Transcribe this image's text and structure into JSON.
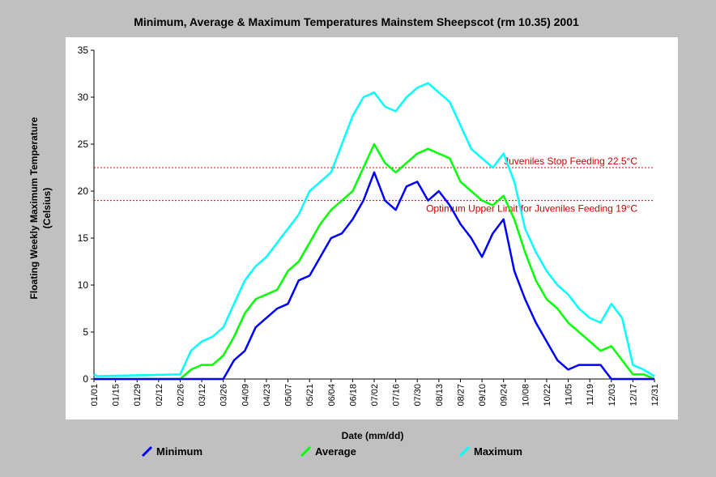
{
  "chart_data": {
    "type": "line",
    "title": "Minimum, Average & Maximum Temperatures Mainstem Sheepscot (rm 10.35) 2001",
    "xlabel": "Date (mm/dd)",
    "ylabel_line1": "Floating Weekly Maximum Temperature",
    "ylabel_line2": "(Celsius)",
    "ylim": [
      0,
      35
    ],
    "xlim": [
      "2001-01-01",
      "2001-12-31"
    ],
    "yticks": [
      0,
      5,
      10,
      15,
      20,
      25,
      30,
      35
    ],
    "xtick_labels": [
      "01/01",
      "01/15",
      "01/29",
      "02/12",
      "02/26",
      "03/12",
      "03/26",
      "04/09",
      "04/23",
      "05/07",
      "05/21",
      "06/04",
      "06/18",
      "07/02",
      "07/16",
      "07/30",
      "08/13",
      "08/27",
      "09/10",
      "09/24",
      "10/08",
      "10/22",
      "11/05",
      "11/19",
      "12/03",
      "12/17",
      "12/31"
    ],
    "grid": false,
    "legend_position": "bottom",
    "reference_lines": [
      {
        "label": "Juveniles Stop Feeding 22.5°C",
        "y": 22.5,
        "color": "#cc0000"
      },
      {
        "label": "Optimum Upper Limit for Juveniles Feeding 19°C",
        "y": 19,
        "color": "#cc0000"
      }
    ],
    "series": [
      {
        "name": "Maximum",
        "color": "#00ffff",
        "x": [
          "2001-01-01",
          "2001-01-03",
          "2001-02-26",
          "2001-03-05",
          "2001-03-12",
          "2001-03-19",
          "2001-03-26",
          "2001-04-02",
          "2001-04-09",
          "2001-04-16",
          "2001-04-23",
          "2001-04-30",
          "2001-05-07",
          "2001-05-14",
          "2001-05-21",
          "2001-05-28",
          "2001-06-04",
          "2001-06-11",
          "2001-06-18",
          "2001-06-25",
          "2001-07-02",
          "2001-07-09",
          "2001-07-16",
          "2001-07-23",
          "2001-07-30",
          "2001-08-06",
          "2001-08-13",
          "2001-08-20",
          "2001-08-27",
          "2001-09-03",
          "2001-09-10",
          "2001-09-17",
          "2001-09-24",
          "2001-10-01",
          "2001-10-08",
          "2001-10-15",
          "2001-10-22",
          "2001-10-29",
          "2001-11-05",
          "2001-11-12",
          "2001-11-19",
          "2001-11-26",
          "2001-12-03",
          "2001-12-10",
          "2001-12-17",
          "2001-12-24",
          "2001-12-31"
        ],
        "values": [
          0.5,
          0.3,
          0.5,
          3.0,
          4.0,
          4.5,
          5.5,
          8.0,
          10.5,
          12.0,
          13.0,
          14.5,
          16.0,
          17.5,
          20.0,
          21.0,
          22.0,
          25.0,
          28.0,
          30.0,
          30.5,
          29.0,
          28.5,
          30.0,
          31.0,
          31.5,
          30.5,
          29.5,
          27.0,
          24.5,
          23.5,
          22.5,
          24.0,
          21.0,
          16.0,
          13.5,
          11.5,
          10.0,
          9.0,
          7.5,
          6.5,
          6.0,
          8.0,
          6.5,
          1.5,
          1.0,
          0.3
        ]
      },
      {
        "name": "Average",
        "color": "#00ff00",
        "x": [
          "2001-01-01",
          "2001-02-26",
          "2001-03-05",
          "2001-03-12",
          "2001-03-19",
          "2001-03-26",
          "2001-04-02",
          "2001-04-09",
          "2001-04-16",
          "2001-04-23",
          "2001-04-30",
          "2001-05-07",
          "2001-05-14",
          "2001-05-21",
          "2001-05-28",
          "2001-06-04",
          "2001-06-11",
          "2001-06-18",
          "2001-06-25",
          "2001-07-02",
          "2001-07-09",
          "2001-07-16",
          "2001-07-23",
          "2001-07-30",
          "2001-08-06",
          "2001-08-13",
          "2001-08-20",
          "2001-08-27",
          "2001-09-03",
          "2001-09-10",
          "2001-09-17",
          "2001-09-24",
          "2001-10-01",
          "2001-10-08",
          "2001-10-15",
          "2001-10-22",
          "2001-10-29",
          "2001-11-05",
          "2001-11-12",
          "2001-11-19",
          "2001-11-26",
          "2001-12-03",
          "2001-12-10",
          "2001-12-17",
          "2001-12-24",
          "2001-12-31"
        ],
        "values": [
          0.0,
          0.0,
          1.0,
          1.5,
          1.5,
          2.5,
          4.5,
          7.0,
          8.5,
          9.0,
          9.5,
          11.5,
          12.5,
          14.5,
          16.5,
          18.0,
          19.0,
          20.0,
          22.5,
          25.0,
          23.0,
          22.0,
          23.0,
          24.0,
          24.5,
          24.0,
          23.5,
          21.0,
          20.0,
          19.0,
          18.5,
          19.5,
          17.0,
          13.5,
          10.5,
          8.5,
          7.5,
          6.0,
          5.0,
          4.0,
          3.0,
          3.5,
          2.0,
          0.5,
          0.5,
          0.0
        ]
      },
      {
        "name": "Minimum",
        "color": "#0000ff",
        "x": [
          "2001-01-01",
          "2001-03-26",
          "2001-04-02",
          "2001-04-09",
          "2001-04-16",
          "2001-04-23",
          "2001-04-30",
          "2001-05-07",
          "2001-05-14",
          "2001-05-21",
          "2001-05-28",
          "2001-06-04",
          "2001-06-11",
          "2001-06-18",
          "2001-06-25",
          "2001-07-02",
          "2001-07-09",
          "2001-07-16",
          "2001-07-23",
          "2001-07-30",
          "2001-08-06",
          "2001-08-13",
          "2001-08-20",
          "2001-08-27",
          "2001-09-03",
          "2001-09-10",
          "2001-09-17",
          "2001-09-24",
          "2001-10-01",
          "2001-10-08",
          "2001-10-15",
          "2001-10-22",
          "2001-10-29",
          "2001-11-05",
          "2001-11-12",
          "2001-11-19",
          "2001-11-26",
          "2001-12-03",
          "2001-12-10",
          "2001-12-17",
          "2001-12-24",
          "2001-12-31"
        ],
        "values": [
          0.0,
          0.0,
          2.0,
          3.0,
          5.5,
          6.5,
          7.5,
          8.0,
          10.5,
          11.0,
          13.0,
          15.0,
          15.5,
          17.0,
          19.0,
          22.0,
          19.0,
          18.0,
          20.5,
          21.0,
          19.0,
          20.0,
          18.5,
          16.5,
          15.0,
          13.0,
          15.5,
          17.0,
          11.5,
          8.5,
          6.0,
          4.0,
          2.0,
          1.0,
          1.5,
          1.5,
          1.5,
          0.0,
          0.0,
          0.0,
          0.0,
          0.0
        ]
      }
    ]
  }
}
